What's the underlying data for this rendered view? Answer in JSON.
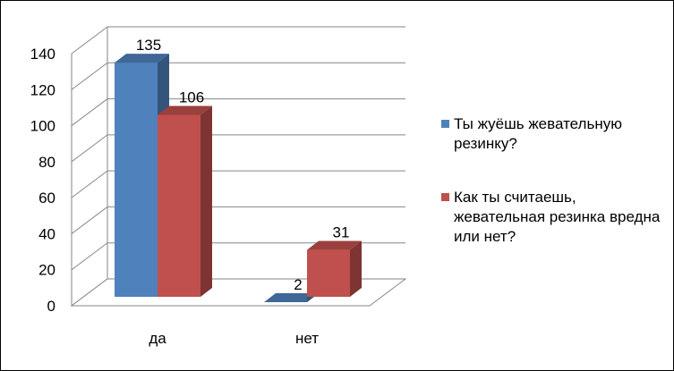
{
  "chart_data": {
    "type": "bar",
    "categories": [
      "да",
      "нет"
    ],
    "series": [
      {
        "name": "Ты жуёшь жевательную резинку?",
        "values": [
          135,
          2
        ],
        "color": "#4F81BD"
      },
      {
        "name": "Как ты считаешь, жевательная резинка вредна или нет?",
        "values": [
          106,
          31
        ],
        "color": "#C0504D"
      }
    ],
    "ylim": [
      0,
      140
    ],
    "yticks": [
      0,
      20,
      40,
      60,
      80,
      100,
      120,
      140
    ],
    "grid": true,
    "legend": "right",
    "three_d": true
  }
}
